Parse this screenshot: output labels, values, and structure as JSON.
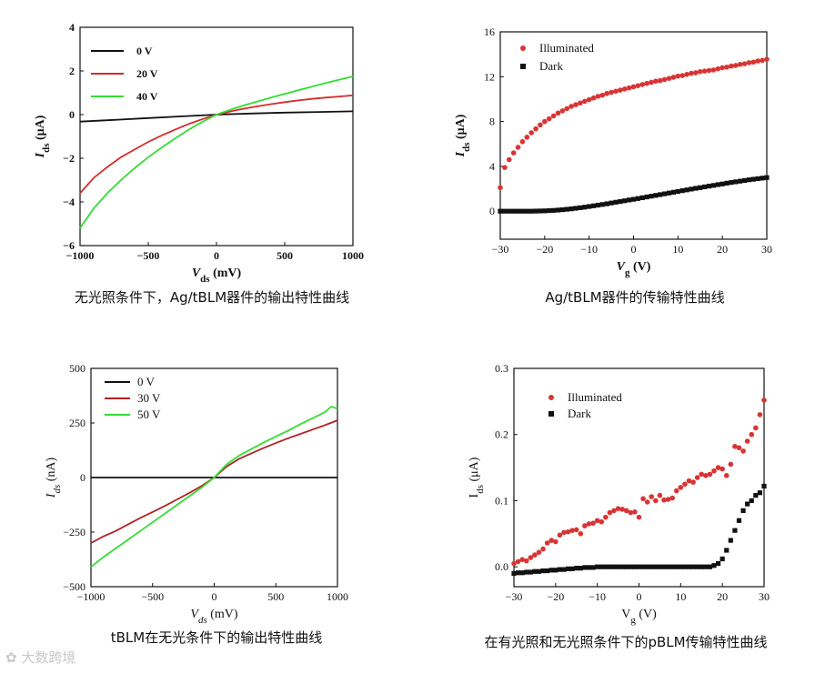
{
  "captions": {
    "a": "无光照条件下，Ag/tBLM器件的输出特性曲线",
    "b": "Ag/tBLM器件的传输特性曲线",
    "c": "tBLM在无光条件下的输出特性曲线",
    "d": "在有光照和无光照条件下的pBLM传输特性曲线"
  },
  "watermark": "大数跨境",
  "colors": {
    "black": "#111111",
    "red": "#d62a2a",
    "green": "#33dd33",
    "dark_red": "#b22222",
    "marker_red": "#d93434",
    "marker_black": "#111111"
  },
  "chart_data": [
    {
      "id": "a",
      "type": "line",
      "title": "",
      "xlabel": "V",
      "xlabel_sub": "ds",
      "xlabel_unit": " (mV)",
      "ylabel": "I",
      "ylabel_sub": "ds",
      "ylabel_unit": " (μA)",
      "xlim": [
        -1000,
        1000
      ],
      "ylim": [
        -6,
        4
      ],
      "xticks": [
        -1000,
        -500,
        0,
        500,
        1000
      ],
      "yticks": [
        -6,
        -4,
        -2,
        0,
        2,
        4
      ],
      "legend_position": "top-left",
      "series": [
        {
          "name": "0 V",
          "color": "black",
          "x": [
            -1000,
            -750,
            -500,
            -250,
            0,
            250,
            500,
            750,
            1000
          ],
          "y": [
            -0.32,
            -0.24,
            -0.16,
            -0.08,
            0,
            0.05,
            0.09,
            0.12,
            0.15
          ]
        },
        {
          "name": "20 V",
          "color": "red",
          "x": [
            -1000,
            -900,
            -800,
            -700,
            -600,
            -500,
            -400,
            -300,
            -200,
            -100,
            0,
            100,
            200,
            300,
            400,
            500,
            600,
            700,
            800,
            900,
            1000
          ],
          "y": [
            -3.6,
            -2.9,
            -2.4,
            -1.95,
            -1.6,
            -1.25,
            -0.95,
            -0.68,
            -0.42,
            -0.2,
            0,
            0.14,
            0.27,
            0.38,
            0.48,
            0.57,
            0.65,
            0.72,
            0.78,
            0.83,
            0.88
          ]
        },
        {
          "name": "40 V",
          "color": "green",
          "x": [
            -1000,
            -900,
            -800,
            -700,
            -600,
            -500,
            -400,
            -300,
            -200,
            -100,
            0,
            100,
            200,
            300,
            400,
            500,
            600,
            700,
            800,
            900,
            1000
          ],
          "y": [
            -5.2,
            -4.3,
            -3.6,
            -3.0,
            -2.45,
            -1.95,
            -1.5,
            -1.08,
            -0.68,
            -0.32,
            0,
            0.22,
            0.42,
            0.6,
            0.78,
            0.95,
            1.12,
            1.28,
            1.45,
            1.6,
            1.75
          ]
        }
      ]
    },
    {
      "id": "b",
      "type": "scatter",
      "title": "",
      "xlabel": "V",
      "xlabel_sub": "g",
      "xlabel_unit": " (V)",
      "ylabel": "I",
      "ylabel_sub": "ds",
      "ylabel_unit": " (μA)",
      "xlim": [
        -30,
        30
      ],
      "ylim": [
        -2.5,
        16
      ],
      "xticks": [
        -30,
        -20,
        -10,
        0,
        10,
        20,
        30
      ],
      "yticks": [
        0,
        4,
        8,
        12,
        16
      ],
      "legend_position": "top-left",
      "series": [
        {
          "name": "Illuminated",
          "color": "marker_red",
          "marker": "circle",
          "x": [
            -30,
            -29,
            -28,
            -27,
            -26,
            -25,
            -24,
            -23,
            -22,
            -21,
            -20,
            -19,
            -18,
            -17,
            -16,
            -15,
            -14,
            -13,
            -12,
            -11,
            -10,
            -9,
            -8,
            -7,
            -6,
            -5,
            -4,
            -3,
            -2,
            -1,
            0,
            1,
            2,
            3,
            4,
            5,
            6,
            7,
            8,
            9,
            10,
            11,
            12,
            13,
            14,
            15,
            16,
            17,
            18,
            19,
            20,
            21,
            22,
            23,
            24,
            25,
            26,
            27,
            28,
            29,
            30
          ],
          "y": [
            2.1,
            3.9,
            4.6,
            5.2,
            5.7,
            6.2,
            6.6,
            7.0,
            7.35,
            7.7,
            8.0,
            8.25,
            8.5,
            8.75,
            8.95,
            9.15,
            9.35,
            9.5,
            9.65,
            9.8,
            9.95,
            10.1,
            10.25,
            10.35,
            10.5,
            10.6,
            10.7,
            10.8,
            10.9,
            11.0,
            11.1,
            11.2,
            11.3,
            11.4,
            11.5,
            11.6,
            11.65,
            11.75,
            11.85,
            11.95,
            12.05,
            12.1,
            12.2,
            12.3,
            12.35,
            12.45,
            12.5,
            12.55,
            12.6,
            12.7,
            12.8,
            12.85,
            12.95,
            13.0,
            13.1,
            13.15,
            13.25,
            13.3,
            13.4,
            13.45,
            13.55
          ]
        },
        {
          "name": "Dark",
          "color": "marker_black",
          "marker": "square",
          "x": [
            -30,
            -29,
            -28,
            -27,
            -26,
            -25,
            -24,
            -23,
            -22,
            -21,
            -20,
            -19,
            -18,
            -17,
            -16,
            -15,
            -14,
            -13,
            -12,
            -11,
            -10,
            -9,
            -8,
            -7,
            -6,
            -5,
            -4,
            -3,
            -2,
            -1,
            0,
            1,
            2,
            3,
            4,
            5,
            6,
            7,
            8,
            9,
            10,
            11,
            12,
            13,
            14,
            15,
            16,
            17,
            18,
            19,
            20,
            21,
            22,
            23,
            24,
            25,
            26,
            27,
            28,
            29,
            30
          ],
          "y": [
            0,
            0,
            0,
            0,
            0,
            0,
            0,
            0,
            0.01,
            0.02,
            0.03,
            0.05,
            0.07,
            0.1,
            0.13,
            0.17,
            0.21,
            0.26,
            0.31,
            0.36,
            0.42,
            0.48,
            0.54,
            0.6,
            0.66,
            0.73,
            0.8,
            0.86,
            0.93,
            1.0,
            1.06,
            1.13,
            1.2,
            1.27,
            1.34,
            1.41,
            1.48,
            1.55,
            1.62,
            1.69,
            1.76,
            1.83,
            1.9,
            1.97,
            2.04,
            2.1,
            2.17,
            2.24,
            2.3,
            2.37,
            2.43,
            2.5,
            2.56,
            2.62,
            2.68,
            2.74,
            2.8,
            2.85,
            2.9,
            2.95,
            3.0
          ]
        }
      ]
    },
    {
      "id": "c",
      "type": "line",
      "title": "",
      "xlabel": "V",
      "xlabel_sub": "ds",
      "xlabel_unit": " (mV)",
      "ylabel": "I",
      "ylabel_sub": "ds",
      "ylabel_unit": " (nA)",
      "xlim": [
        -1000,
        1000
      ],
      "ylim": [
        -500,
        500
      ],
      "xticks": [
        -1000,
        -500,
        0,
        500,
        1000
      ],
      "yticks": [
        -500,
        -250,
        0,
        250,
        500
      ],
      "legend_position": "top-left",
      "series": [
        {
          "name": "0 V",
          "color": "black",
          "x": [
            -1000,
            1000
          ],
          "y": [
            0,
            0
          ]
        },
        {
          "name": "30 V",
          "color": "dark_red",
          "x": [
            -1000,
            -900,
            -800,
            -700,
            -600,
            -500,
            -400,
            -300,
            -200,
            -100,
            0,
            100,
            200,
            300,
            400,
            500,
            600,
            700,
            800,
            900,
            1000
          ],
          "y": [
            -300,
            -270,
            -245,
            -215,
            -185,
            -158,
            -130,
            -100,
            -70,
            -38,
            0,
            50,
            85,
            110,
            135,
            158,
            180,
            200,
            220,
            240,
            262
          ]
        },
        {
          "name": "50 V",
          "color": "green",
          "x": [
            -1000,
            -900,
            -800,
            -700,
            -600,
            -500,
            -400,
            -300,
            -200,
            -100,
            0,
            100,
            200,
            300,
            400,
            500,
            600,
            700,
            800,
            900,
            950,
            1000
          ],
          "y": [
            -410,
            -365,
            -325,
            -285,
            -245,
            -205,
            -165,
            -125,
            -85,
            -45,
            0,
            60,
            100,
            130,
            160,
            188,
            215,
            245,
            272,
            300,
            325,
            315
          ]
        }
      ]
    },
    {
      "id": "d",
      "type": "scatter",
      "title": "",
      "xlabel": "V",
      "xlabel_sub": "g",
      "xlabel_unit": " (V)",
      "ylabel": "I",
      "ylabel_sub": "ds",
      "ylabel_unit": " (μA)",
      "xlim": [
        -30,
        30
      ],
      "ylim": [
        -0.03,
        0.3
      ],
      "xticks": [
        -30,
        -20,
        -10,
        0,
        10,
        20,
        30
      ],
      "yticks": [
        0.0,
        0.1,
        0.2,
        0.3
      ],
      "legend_position": "top-left",
      "series": [
        {
          "name": "Illuminated",
          "color": "marker_red",
          "marker": "circle",
          "x": [
            -30,
            -29,
            -28,
            -27,
            -26,
            -25,
            -24,
            -23,
            -22,
            -21,
            -20,
            -19,
            -18,
            -17,
            -16,
            -15,
            -14,
            -13,
            -12,
            -11,
            -10,
            -9,
            -8,
            -7,
            -6,
            -5,
            -4,
            -3,
            -2,
            -1,
            0,
            1,
            2,
            3,
            4,
            5,
            6,
            7,
            8,
            9,
            10,
            11,
            12,
            13,
            14,
            15,
            16,
            17,
            18,
            19,
            20,
            21,
            22,
            23,
            24,
            25,
            26,
            27,
            28,
            29,
            30
          ],
          "y": [
            0.005,
            0.008,
            0.011,
            0.009,
            0.014,
            0.018,
            0.022,
            0.027,
            0.036,
            0.04,
            0.038,
            0.048,
            0.052,
            0.053,
            0.055,
            0.056,
            0.05,
            0.062,
            0.065,
            0.066,
            0.07,
            0.068,
            0.075,
            0.082,
            0.085,
            0.088,
            0.087,
            0.085,
            0.082,
            0.083,
            0.075,
            0.103,
            0.098,
            0.106,
            0.1,
            0.108,
            0.101,
            0.102,
            0.104,
            0.115,
            0.12,
            0.125,
            0.13,
            0.128,
            0.135,
            0.14,
            0.138,
            0.14,
            0.145,
            0.15,
            0.148,
            0.138,
            0.155,
            0.182,
            0.18,
            0.175,
            0.19,
            0.2,
            0.21,
            0.23,
            0.252
          ]
        },
        {
          "name": "Dark",
          "color": "marker_black",
          "marker": "square",
          "x": [
            -30,
            -29,
            -28,
            -27,
            -26,
            -25,
            -24,
            -23,
            -22,
            -21,
            -20,
            -19,
            -18,
            -17,
            -16,
            -15,
            -14,
            -13,
            -12,
            -11,
            -10,
            -9,
            -8,
            -7,
            -6,
            -5,
            -4,
            -3,
            -2,
            -1,
            0,
            1,
            2,
            3,
            4,
            5,
            6,
            7,
            8,
            9,
            10,
            11,
            12,
            13,
            14,
            15,
            16,
            17,
            18,
            19,
            20,
            21,
            22,
            23,
            24,
            25,
            26,
            27,
            28,
            29,
            30
          ],
          "y": [
            -0.01,
            -0.009,
            -0.009,
            -0.008,
            -0.008,
            -0.007,
            -0.007,
            -0.006,
            -0.006,
            -0.005,
            -0.005,
            -0.004,
            -0.004,
            -0.003,
            -0.003,
            -0.002,
            -0.002,
            -0.001,
            -0.001,
            -0.001,
            0,
            0,
            0,
            0,
            0,
            0,
            0,
            0,
            0,
            0,
            0,
            0,
            0,
            0,
            0,
            0,
            0,
            0,
            0,
            0,
            0,
            0,
            0,
            0,
            0,
            0,
            0,
            0,
            0.002,
            0.005,
            0.012,
            0.025,
            0.04,
            0.055,
            0.07,
            0.085,
            0.095,
            0.1,
            0.108,
            0.112,
            0.122
          ]
        }
      ]
    }
  ]
}
